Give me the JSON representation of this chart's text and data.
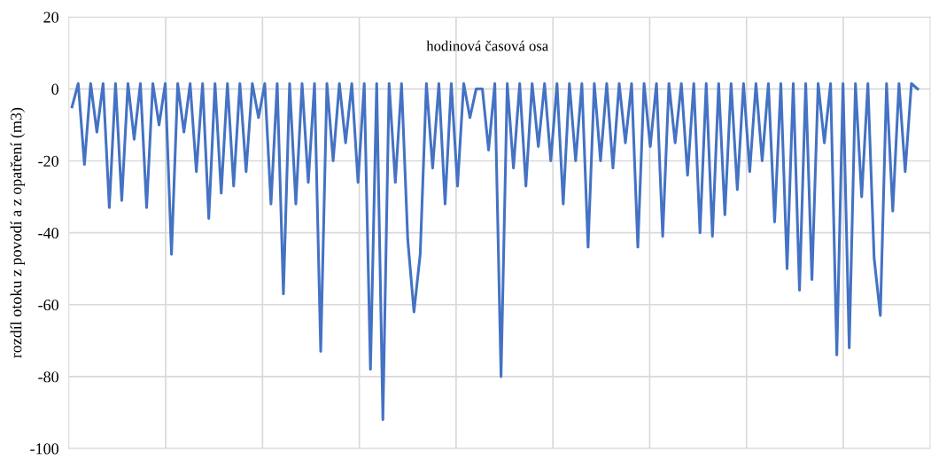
{
  "chart_data": {
    "type": "line",
    "ylabel": "rozdíl otoku z povodí a z opatření (m3)",
    "annotations": [
      "hodinová časová osa"
    ],
    "categories": [
      null,
      null,
      null,
      null,
      null,
      null,
      null,
      null,
      null,
      null,
      null,
      null,
      null,
      null,
      null,
      null,
      null,
      null,
      null,
      null,
      null,
      null,
      null,
      null,
      null,
      null,
      null,
      null,
      null,
      null,
      null,
      null,
      null,
      null,
      null,
      null,
      null,
      null,
      null,
      null,
      null,
      null,
      null,
      null,
      null,
      null,
      null,
      null,
      null,
      null,
      null,
      null,
      null,
      null,
      null,
      null,
      null,
      null,
      null,
      null,
      null,
      null,
      null,
      null,
      null,
      null,
      null,
      null,
      null,
      null,
      null,
      null,
      null,
      null,
      null,
      null,
      null,
      null,
      null,
      null,
      null,
      null,
      null,
      null,
      null,
      null,
      null,
      null,
      null,
      null,
      null,
      null,
      null,
      null,
      null,
      null,
      null,
      null,
      null,
      null,
      null,
      null,
      null,
      null,
      null,
      null,
      null,
      null,
      null,
      null,
      null,
      null,
      null,
      null,
      null,
      null,
      null,
      null,
      null,
      null,
      null,
      null,
      null,
      null,
      null,
      null,
      null,
      null,
      null,
      null,
      null,
      null,
      null,
      null,
      null,
      null,
      null
    ],
    "ylim": [
      -100,
      20
    ],
    "yticks": [
      -100,
      -80,
      -60,
      -40,
      -20,
      0,
      20
    ],
    "grid": true,
    "tick_labels": "y",
    "marker": "none",
    "line_style": "solid",
    "series": [
      {
        "color": "#4472c4",
        "values": [
          -5,
          1.5,
          -21,
          1.5,
          -12,
          1.5,
          -33,
          1.5,
          -31,
          1.5,
          -14,
          1.5,
          -33,
          1.5,
          -10,
          1.5,
          -46,
          1.5,
          -12,
          1.5,
          -23,
          1.5,
          -36,
          1.5,
          -29,
          1.5,
          -27,
          1.5,
          -23,
          1.5,
          -8,
          1.5,
          -32,
          1.5,
          -57,
          1.5,
          -32,
          1.5,
          -26,
          1.5,
          -73,
          1.5,
          -20,
          1.5,
          -15,
          1.5,
          -26,
          1.5,
          -78,
          1.5,
          -92,
          1.5,
          -26,
          1.5,
          -42,
          -62,
          -46,
          1.5,
          -22,
          1.5,
          -32,
          1.5,
          -27,
          1.5,
          -8,
          0,
          0,
          -17,
          1.5,
          -80,
          1.5,
          -22,
          1.5,
          -27,
          1.5,
          -16,
          1.5,
          -20,
          1.5,
          -32,
          1.5,
          -20,
          1.5,
          -44,
          1.5,
          -20,
          1.5,
          -22,
          1.5,
          -15,
          1.5,
          -44,
          1.5,
          -16,
          1.5,
          -41,
          1.5,
          -15,
          1.5,
          -24,
          1.5,
          -40,
          1.5,
          -41,
          1.5,
          -35,
          1.5,
          -28,
          1.5,
          -23,
          1.5,
          -20,
          1.5,
          -37,
          1.5,
          -50,
          1.5,
          -56,
          1.5,
          -53,
          1.5,
          -15,
          1.5,
          -74,
          1.5,
          -72,
          1.5,
          -30,
          1.5,
          -47,
          -63,
          1.5,
          -34,
          1.5,
          -23,
          1.5,
          0
        ]
      }
    ]
  }
}
